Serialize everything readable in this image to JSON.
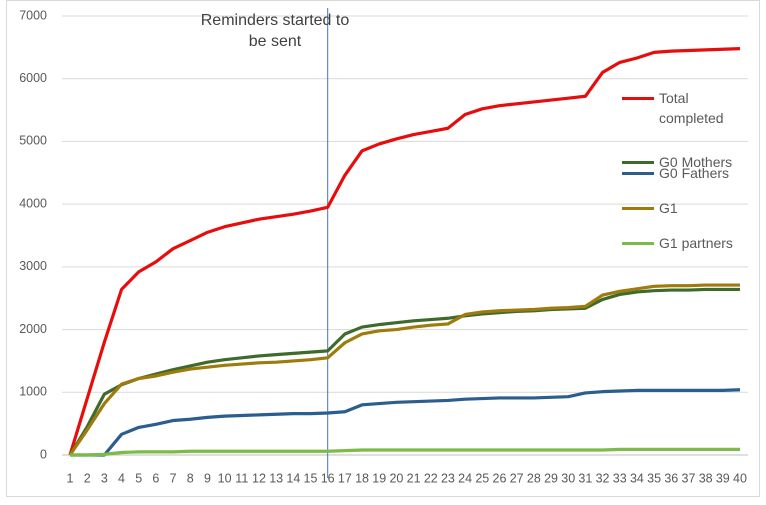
{
  "chart_data": {
    "type": "line",
    "x": [
      1,
      2,
      3,
      4,
      5,
      6,
      7,
      8,
      9,
      10,
      11,
      12,
      13,
      14,
      15,
      16,
      17,
      18,
      19,
      20,
      21,
      22,
      23,
      24,
      25,
      26,
      27,
      28,
      29,
      30,
      31,
      32,
      33,
      34,
      35,
      36,
      37,
      38,
      39,
      40
    ],
    "series": [
      {
        "name": "Total completed",
        "color": "#e60d0d",
        "values": [
          0,
          900,
          1800,
          2640,
          2920,
          3080,
          3290,
          3420,
          3550,
          3640,
          3700,
          3760,
          3800,
          3840,
          3890,
          3950,
          4460,
          4850,
          4960,
          5040,
          5110,
          5160,
          5210,
          5430,
          5520,
          5570,
          5600,
          5630,
          5660,
          5690,
          5720,
          6100,
          6260,
          6330,
          6420,
          6440,
          6450,
          6460,
          6470,
          6480
        ]
      },
      {
        "name": "G0 Mothers",
        "color": "#3e6b2b",
        "values": [
          0,
          450,
          970,
          1120,
          1220,
          1290,
          1360,
          1420,
          1480,
          1520,
          1550,
          1580,
          1600,
          1620,
          1640,
          1660,
          1930,
          2040,
          2080,
          2110,
          2140,
          2160,
          2180,
          2220,
          2250,
          2270,
          2290,
          2300,
          2320,
          2330,
          2340,
          2480,
          2560,
          2600,
          2620,
          2630,
          2630,
          2640,
          2640,
          2640
        ]
      },
      {
        "name": "G0 Fathers",
        "color": "#2b5e8e",
        "values": [
          0,
          0,
          0,
          330,
          440,
          490,
          550,
          570,
          600,
          620,
          630,
          640,
          650,
          660,
          660,
          670,
          690,
          800,
          820,
          840,
          850,
          860,
          870,
          890,
          900,
          910,
          910,
          910,
          920,
          930,
          990,
          1010,
          1020,
          1030,
          1030,
          1030,
          1030,
          1030,
          1030,
          1040
        ]
      },
      {
        "name": "G1",
        "color": "#9e7b0c",
        "values": [
          0,
          400,
          820,
          1130,
          1220,
          1260,
          1320,
          1370,
          1400,
          1430,
          1450,
          1470,
          1480,
          1500,
          1520,
          1550,
          1790,
          1930,
          1980,
          2000,
          2040,
          2070,
          2090,
          2240,
          2280,
          2300,
          2310,
          2320,
          2340,
          2350,
          2370,
          2550,
          2610,
          2650,
          2690,
          2700,
          2700,
          2710,
          2710,
          2710
        ]
      },
      {
        "name": "G1 partners",
        "color": "#7cbb4a",
        "values": [
          0,
          0,
          10,
          40,
          50,
          50,
          50,
          60,
          60,
          60,
          60,
          60,
          60,
          60,
          60,
          60,
          70,
          80,
          80,
          80,
          80,
          80,
          80,
          80,
          80,
          80,
          80,
          80,
          80,
          80,
          80,
          80,
          90,
          90,
          90,
          90,
          90,
          90,
          90,
          90
        ]
      }
    ],
    "ylim": [
      0,
      7000
    ],
    "yticks": [
      0,
      1000,
      2000,
      3000,
      4000,
      5000,
      6000,
      7000
    ],
    "grid": true,
    "annotation": {
      "text": "Reminders started to be sent",
      "x": 16,
      "color": "#4472c4"
    }
  }
}
